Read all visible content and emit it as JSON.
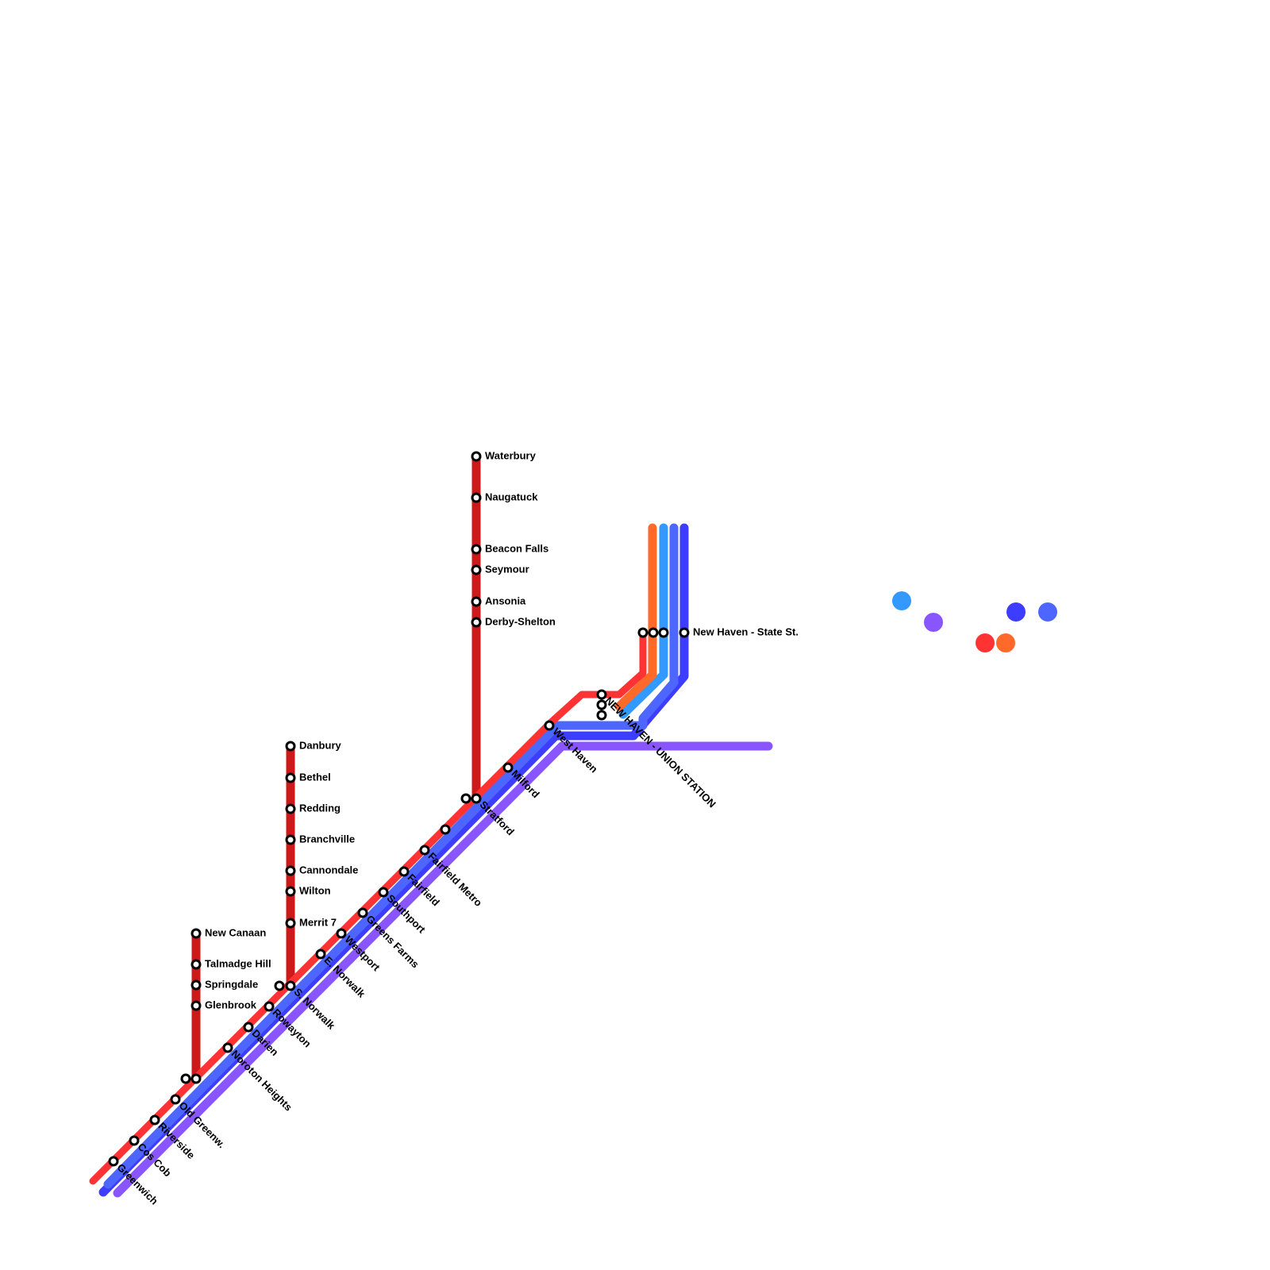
{
  "main_line": [
    "Greenwich",
    "Cos Cob",
    "Riverside",
    "Old Greenw.",
    "Noroton Heights",
    "Darien",
    "Rowayton",
    "S. Norwalk",
    "E. Norwalk",
    "Westport",
    "Greens Farms",
    "Southport",
    "Fairfield",
    "Fairfield Metro",
    "Stratford",
    "Milford",
    "West Haven",
    "NEW HAVEN - UNION STATION"
  ],
  "new_canaan_branch": [
    "New Canaan",
    "Talmadge Hill",
    "Springdale",
    "Glenbrook"
  ],
  "danbury_branch": [
    "Danbury",
    "Bethel",
    "Redding",
    "Branchville",
    "Cannondale",
    "Wilton",
    "Merrit 7"
  ],
  "waterbury_branch": [
    "Waterbury",
    "Naugatuck",
    "Beacon Falls",
    "Seymour",
    "Ansonia",
    "Derby-Shelton"
  ],
  "terminus": "New Haven - State St."
}
